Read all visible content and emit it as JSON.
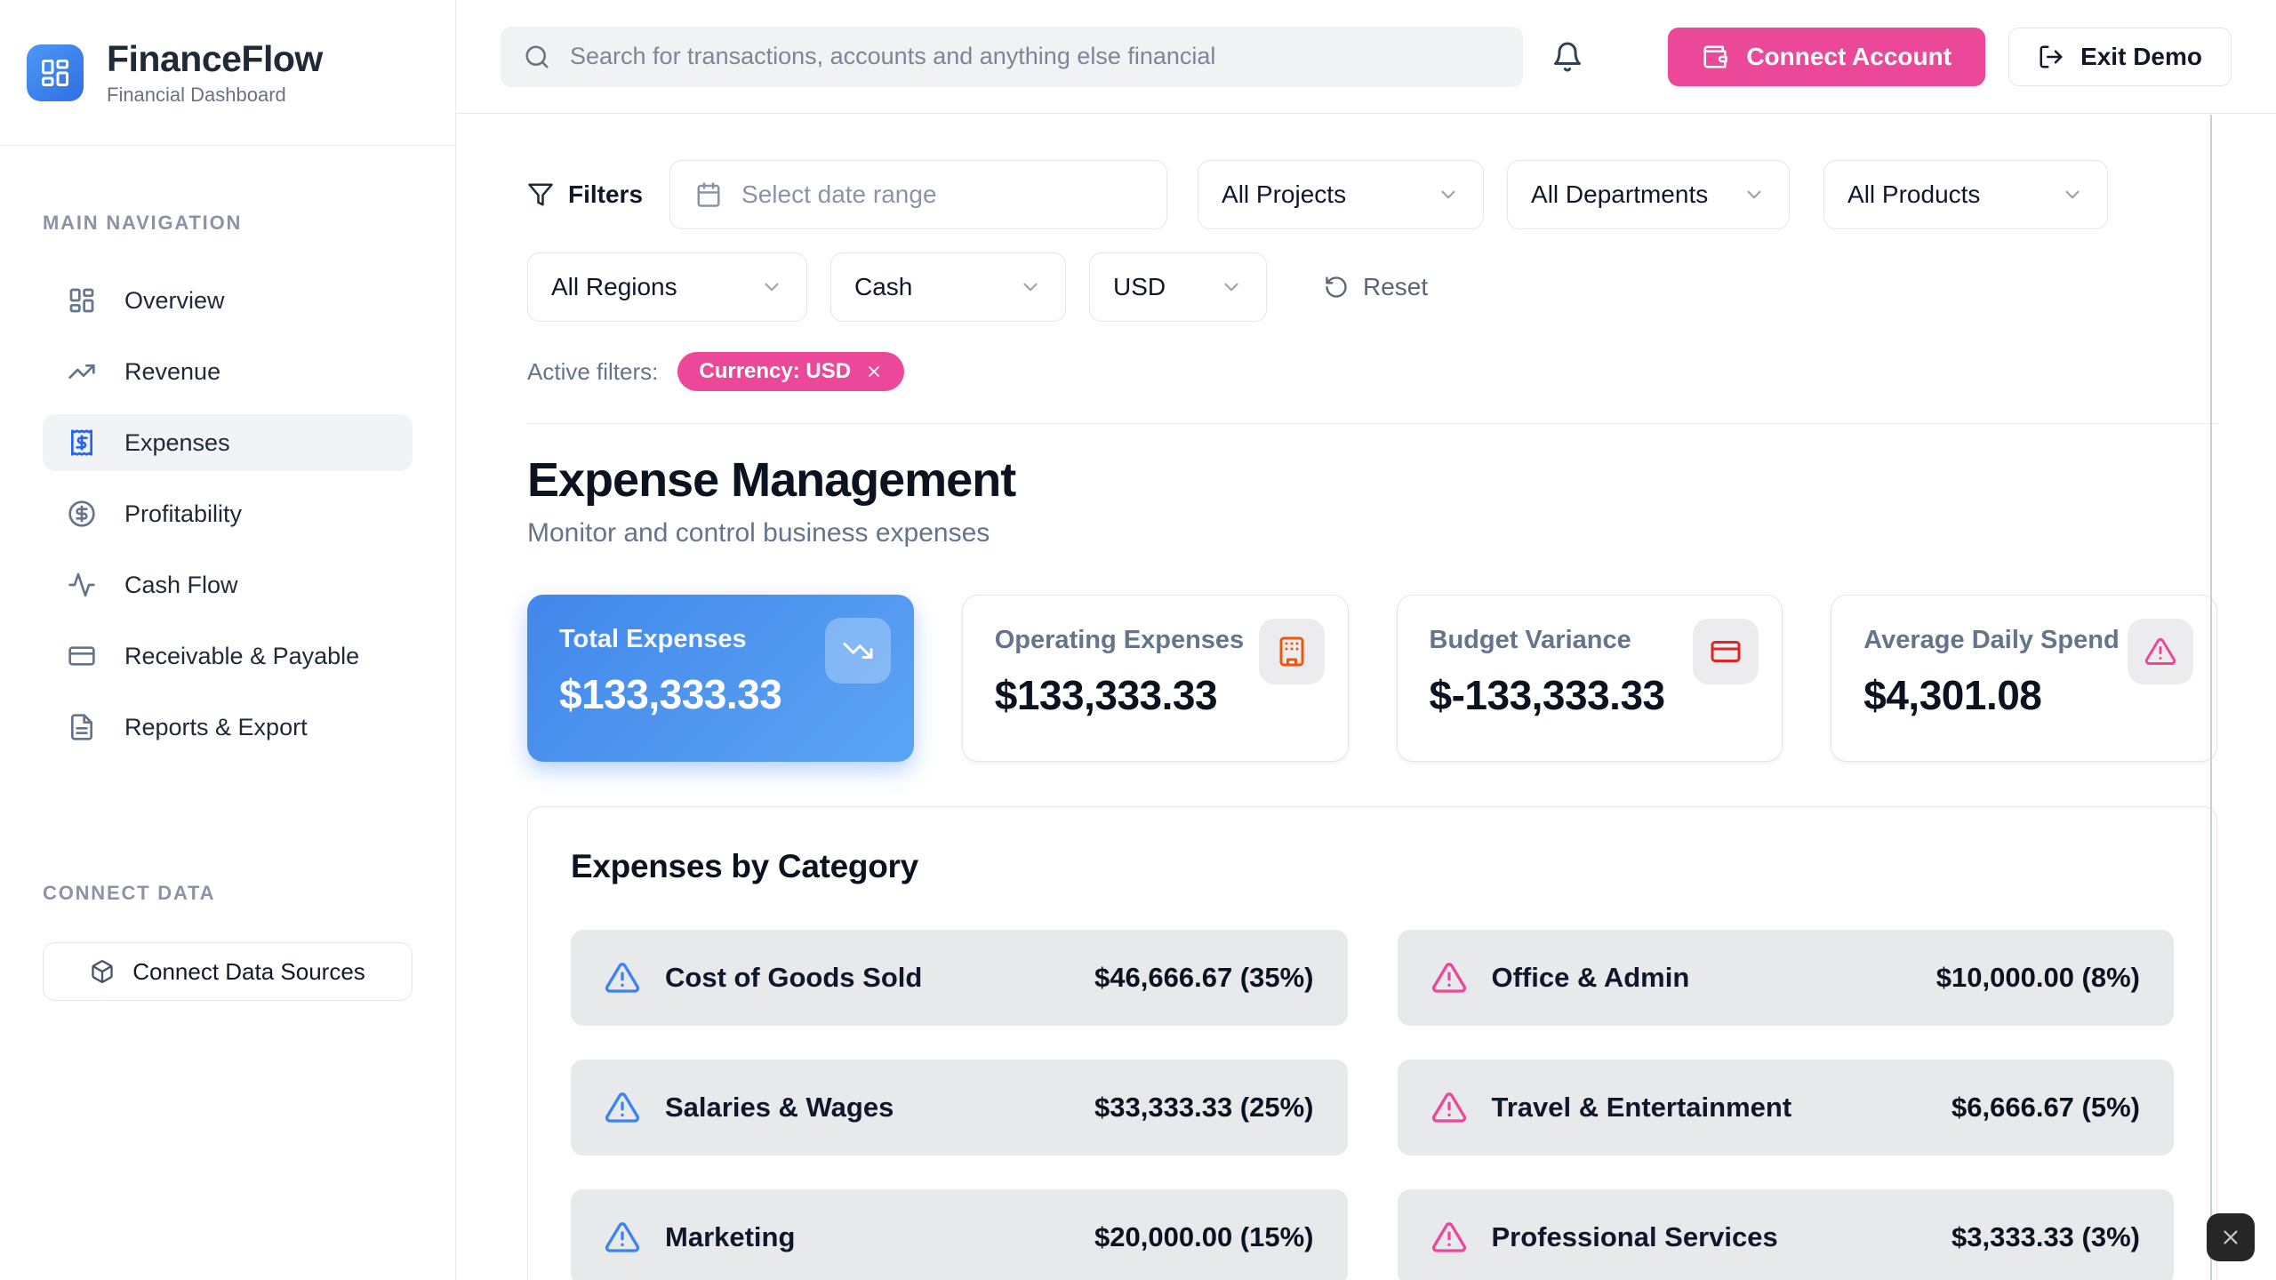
{
  "app": {
    "name": "FinanceFlow",
    "tagline": "Financial Dashboard",
    "logo_icon": "layout-dashboard"
  },
  "topbar": {
    "search_placeholder": "Search for transactions, accounts and anything else financial",
    "bell_icon": "bell",
    "connect_account_label": "Connect Account",
    "connect_account_icon": "wallet",
    "exit_demo_label": "Exit Demo",
    "exit_demo_icon": "log-out"
  },
  "sidebar": {
    "nav_title": "MAIN NAVIGATION",
    "items": [
      {
        "label": "Overview",
        "icon": "layout-dashboard",
        "active": false
      },
      {
        "label": "Revenue",
        "icon": "trending-up",
        "active": false
      },
      {
        "label": "Expenses",
        "icon": "receipt",
        "active": true
      },
      {
        "label": "Profitability",
        "icon": "circle-dollar",
        "active": false
      },
      {
        "label": "Cash Flow",
        "icon": "activity",
        "active": false
      },
      {
        "label": "Receivable & Payable",
        "icon": "credit-card",
        "active": false
      },
      {
        "label": "Reports & Export",
        "icon": "file-text",
        "active": false
      }
    ],
    "connect_title": "CONNECT DATA",
    "connect_button": "Connect Data Sources",
    "connect_icon": "package"
  },
  "filters": {
    "label": "Filters",
    "filter_icon": "funnel",
    "date_placeholder": "Select date range",
    "date_icon": "calendar",
    "row1_selects": [
      {
        "value": "All Projects"
      },
      {
        "value": "All Departments"
      },
      {
        "value": "All Products"
      }
    ],
    "row2_selects": [
      {
        "value": "All Regions"
      },
      {
        "value": "Cash"
      },
      {
        "value": "USD"
      }
    ],
    "reset_label": "Reset",
    "reset_icon": "rotate-ccw",
    "active_label": "Active filters:",
    "chips": [
      {
        "label": "Currency: USD"
      }
    ]
  },
  "page": {
    "title": "Expense Management",
    "subtitle": "Monitor and control business expenses"
  },
  "stats": {
    "items": [
      {
        "label": "Total Expenses",
        "value": "$133,333.33",
        "icon": "trending-down",
        "variant": "primary",
        "icon_color": "#FFFFFF"
      },
      {
        "label": "Operating Expenses",
        "value": "$133,333.33",
        "icon": "building",
        "variant": "default",
        "icon_color": "#EA580C"
      },
      {
        "label": "Budget Variance",
        "value": "$-133,333.33",
        "icon": "credit-card",
        "variant": "default",
        "icon_color": "#DC2626"
      },
      {
        "label": "Average Daily Spend",
        "value": "$4,301.08",
        "icon": "alert-triangle",
        "variant": "default",
        "icon_color": "#EC4899"
      }
    ]
  },
  "categories": {
    "title": "Expenses by Category",
    "row_icon": "alert-triangle",
    "items": [
      {
        "name": "Cost of Goods Sold",
        "amount": "$46,666.67 (35%)",
        "icon_color": "#3B82F6"
      },
      {
        "name": "Office & Admin",
        "amount": "$10,000.00 (8%)",
        "icon_color": "#EC4899"
      },
      {
        "name": "Salaries & Wages",
        "amount": "$33,333.33 (25%)",
        "icon_color": "#3B82F6"
      },
      {
        "name": "Travel & Entertainment",
        "amount": "$6,666.67 (5%)",
        "icon_color": "#EC4899"
      },
      {
        "name": "Marketing",
        "amount": "$20,000.00 (15%)",
        "icon_color": "#3B82F6"
      },
      {
        "name": "Professional Services",
        "amount": "$3,333.33 (3%)",
        "icon_color": "#EC4899"
      }
    ]
  },
  "colors": {
    "accent_blue": "#3B82F6",
    "accent_pink": "#EC4899",
    "orange": "#EA580C",
    "red": "#DC2626",
    "text_dark": "#0F172A",
    "text_muted": "#64748B"
  }
}
